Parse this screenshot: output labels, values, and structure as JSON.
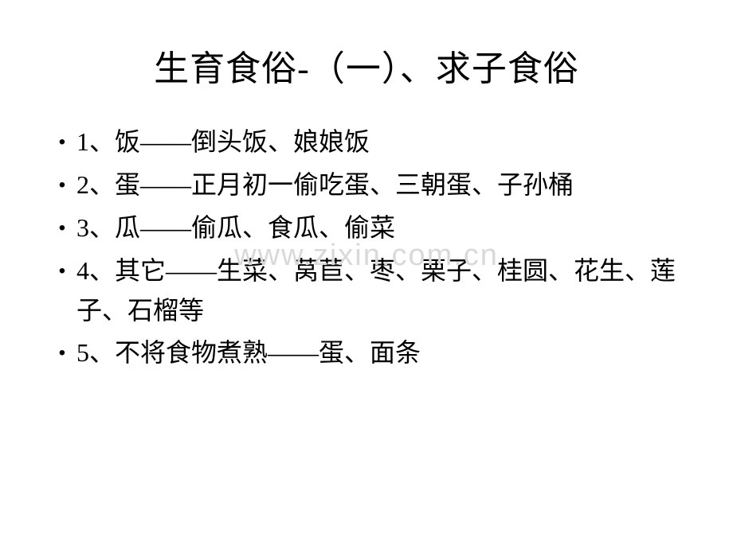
{
  "title": "生育食俗-（一）、求子食俗",
  "watermark": "www.zixin.com.cn",
  "bullet_char": "•",
  "items": [
    "1、饭——倒头饭、娘娘饭",
    "2、蛋——正月初一偷吃蛋、三朝蛋、子孙桶",
    "3、瓜——偷瓜、食瓜、偷菜",
    "4、其它——生菜、莴苣、枣、栗子、桂圆、花生、莲子、石榴等",
    "5、不将食物煮熟——蛋、面条"
  ],
  "style": {
    "background_color": "#ffffff",
    "text_color": "#000000",
    "watermark_color": "#d9d9d9",
    "title_fontsize": 44,
    "body_fontsize": 32,
    "font_family": "SimSun"
  }
}
